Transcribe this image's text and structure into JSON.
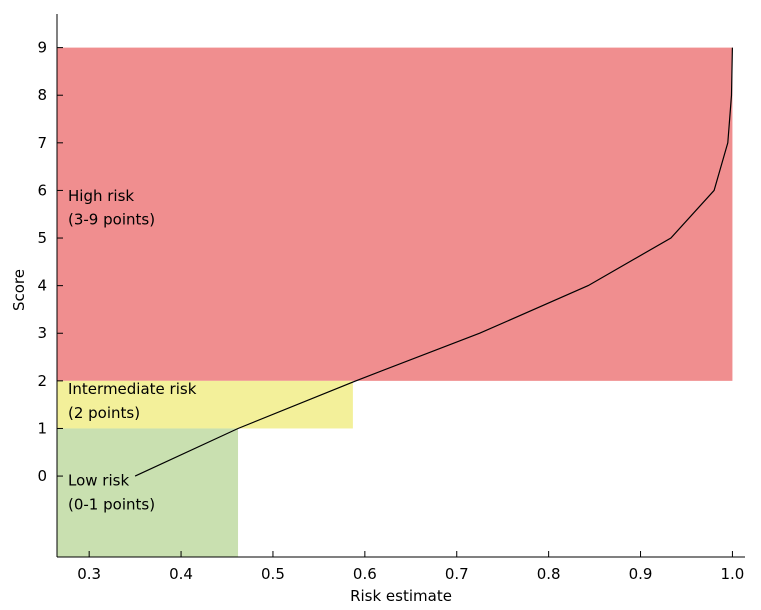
{
  "chart_data": {
    "type": "line",
    "xlabel": "Risk estimate",
    "ylabel": "Score",
    "xlim": [
      0.265,
      1.03
    ],
    "ylim": [
      -1.7,
      10
    ],
    "x_ticks": [
      0.3,
      0.4,
      0.5,
      0.6,
      0.7,
      0.8,
      0.9,
      1.0
    ],
    "x_tick_labels": [
      "0.3",
      "0.4",
      "0.5",
      "0.6",
      "0.7",
      "0.8",
      "0.9",
      "1.0"
    ],
    "y_ticks": [
      0,
      1,
      2,
      3,
      4,
      5,
      6,
      7,
      8,
      9
    ],
    "y_tick_labels": [
      "0",
      "1",
      "2",
      "3",
      "4",
      "5",
      "6",
      "7",
      "8",
      "9"
    ],
    "grid": false,
    "series": [
      {
        "x": [
          0.35,
          0.462,
          0.59,
          0.725,
          0.843,
          0.933,
          0.98,
          0.995,
          0.999,
          1.0
        ],
        "y": [
          0,
          1,
          2,
          3,
          4,
          5,
          6,
          7,
          8,
          9
        ],
        "color": "#000000"
      }
    ],
    "regions": [
      {
        "label_line1": "Low risk",
        "label_line2": "(0-1 points)",
        "x0": 0.265,
        "x1": 0.462,
        "y0": -1.7,
        "y1": 1,
        "color": "#c9e0b0"
      },
      {
        "label_line1": "Intermediate risk",
        "label_line2": "(2 points)",
        "x0": 0.265,
        "x1": 0.587,
        "y0": 1,
        "y1": 2,
        "color": "#f3f09a"
      },
      {
        "label_line1": "High risk",
        "label_line2": "(3-9 points)",
        "x0": 0.265,
        "x1": 1.0,
        "y0": 2,
        "y1": 9,
        "color": "#f08e8f"
      }
    ]
  }
}
